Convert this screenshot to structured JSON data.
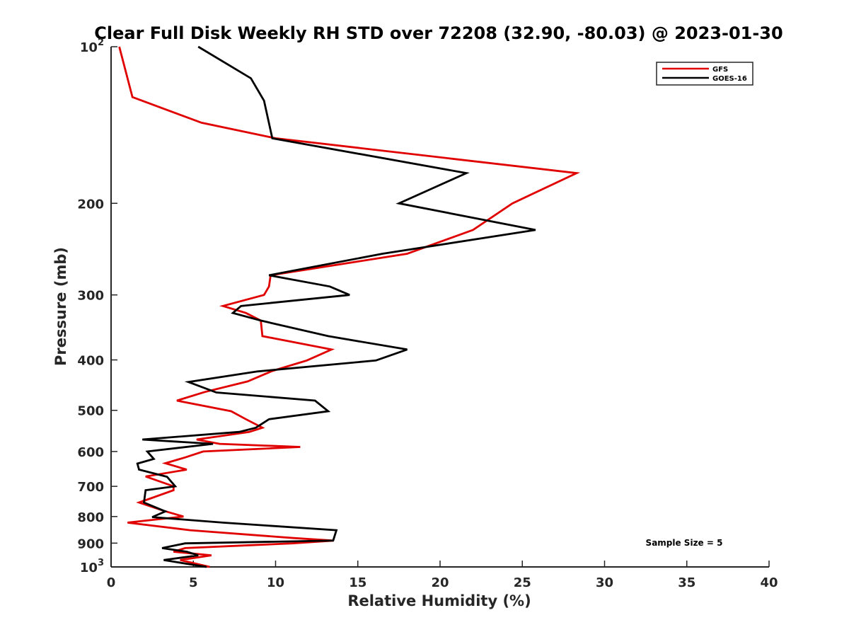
{
  "colors": {
    "gfs": "#e00000",
    "goes": "#000000",
    "axis": "#262626"
  },
  "chart_data": {
    "type": "line",
    "title": "Clear Full Disk Weekly RH STD over 72208 (32.90, -80.03) @ 2023-01-30",
    "xlabel": "Relative Humidity (%)",
    "ylabel": "Pressure (mb)",
    "xlim": [
      0,
      40
    ],
    "ylim": [
      100,
      1000
    ],
    "y_scale": "log",
    "y_reversed": true,
    "grid": false,
    "legend_position": "top-right",
    "x_ticks": [
      {
        "value": 0,
        "label": "0"
      },
      {
        "value": 5,
        "label": "5"
      },
      {
        "value": 10,
        "label": "10"
      },
      {
        "value": 15,
        "label": "15"
      },
      {
        "value": 20,
        "label": "20"
      },
      {
        "value": 25,
        "label": "25"
      },
      {
        "value": 30,
        "label": "30"
      },
      {
        "value": 35,
        "label": "35"
      },
      {
        "value": 40,
        "label": "40"
      }
    ],
    "y_ticks": [
      {
        "value": 100,
        "base": "10",
        "exp": "2"
      },
      {
        "value": 200,
        "label": "200"
      },
      {
        "value": 300,
        "label": "300"
      },
      {
        "value": 400,
        "label": "400"
      },
      {
        "value": 500,
        "label": "500"
      },
      {
        "value": 600,
        "label": "600"
      },
      {
        "value": 700,
        "label": "700"
      },
      {
        "value": 800,
        "label": "800"
      },
      {
        "value": 900,
        "label": "900"
      },
      {
        "value": 1000,
        "base": "10",
        "exp": "3"
      }
    ],
    "series": [
      {
        "name": "GFS",
        "color": "#e00000",
        "points": [
          [
            0.5,
            100
          ],
          [
            1.3,
            125
          ],
          [
            5.5,
            140
          ],
          [
            10,
            150
          ],
          [
            28.3,
            175
          ],
          [
            24.4,
            200
          ],
          [
            22,
            225
          ],
          [
            18,
            250
          ],
          [
            9.7,
            275
          ],
          [
            9.6,
            289
          ],
          [
            9.3,
            300
          ],
          [
            6.8,
            315
          ],
          [
            8.2,
            325
          ],
          [
            9.1,
            336
          ],
          [
            9.2,
            360
          ],
          [
            13.4,
            382
          ],
          [
            11.9,
            401
          ],
          [
            9.8,
            420
          ],
          [
            8.3,
            440
          ],
          [
            5.7,
            461
          ],
          [
            4,
            479
          ],
          [
            7.3,
            502
          ],
          [
            8.2,
            520
          ],
          [
            9.2,
            540
          ],
          [
            8.4,
            550
          ],
          [
            5.2,
            569
          ],
          [
            6.6,
            580
          ],
          [
            11.5,
            588
          ],
          [
            5.6,
            600
          ],
          [
            4.5,
            616
          ],
          [
            3.3,
            632
          ],
          [
            4.6,
            650
          ],
          [
            2.1,
            670
          ],
          [
            3.8,
            700
          ],
          [
            3.8,
            712
          ],
          [
            1.7,
            752
          ],
          [
            3.2,
            780
          ],
          [
            4.4,
            800
          ],
          [
            1.0,
            822
          ],
          [
            4.8,
            850
          ],
          [
            11.1,
            880
          ],
          [
            13.5,
            890
          ],
          [
            11,
            901
          ],
          [
            4.5,
            920
          ],
          [
            3.8,
            935
          ],
          [
            6.1,
            950
          ],
          [
            4.2,
            970
          ],
          [
            6,
            1000
          ]
        ]
      },
      {
        "name": "GOES-16",
        "color": "#000000",
        "points": [
          [
            5.3,
            100
          ],
          [
            8.5,
            115
          ],
          [
            9.3,
            127
          ],
          [
            9.8,
            150
          ],
          [
            21.6,
            175
          ],
          [
            17.5,
            200
          ],
          [
            25.8,
            225
          ],
          [
            16.5,
            250
          ],
          [
            9.6,
            275
          ],
          [
            13.3,
            289
          ],
          [
            14.5,
            300
          ],
          [
            7.9,
            315
          ],
          [
            7.4,
            325
          ],
          [
            9.1,
            336
          ],
          [
            13.2,
            360
          ],
          [
            18,
            382
          ],
          [
            16.1,
            401
          ],
          [
            8.9,
            421
          ],
          [
            4.7,
            441
          ],
          [
            6.4,
            462
          ],
          [
            12.4,
            479
          ],
          [
            13.2,
            502
          ],
          [
            9.6,
            520
          ],
          [
            8.8,
            540
          ],
          [
            7.8,
            550
          ],
          [
            1.9,
            569
          ],
          [
            6.2,
            580
          ],
          [
            2.2,
            600
          ],
          [
            2.6,
            620
          ],
          [
            1.6,
            633
          ],
          [
            1.7,
            650
          ],
          [
            3.4,
            671
          ],
          [
            3.9,
            700
          ],
          [
            2.1,
            712
          ],
          [
            2.0,
            752
          ],
          [
            3.3,
            782
          ],
          [
            2.5,
            802
          ],
          [
            6.8,
            822
          ],
          [
            13.7,
            850
          ],
          [
            13.5,
            890
          ],
          [
            4.5,
            901
          ],
          [
            3.1,
            920
          ],
          [
            4.6,
            935
          ],
          [
            5.3,
            950
          ],
          [
            3.2,
            970
          ],
          [
            5.8,
            1000
          ]
        ]
      }
    ],
    "annotations": [
      {
        "text": "Sample Size = 5"
      }
    ]
  }
}
